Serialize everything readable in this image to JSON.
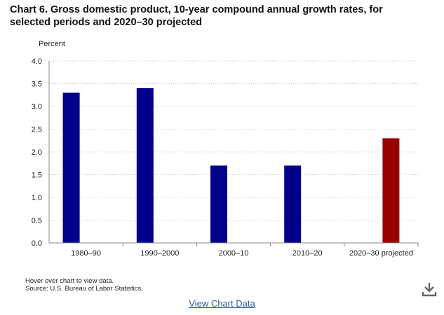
{
  "title": "Chart 6. Gross domestic product, 10-year compound annual growth rates, for selected periods and 2020–30 projected",
  "footnote": {
    "line1": "Hover over chart to view data.",
    "line2": "Source: U.S. Bureau of Labor Statistics."
  },
  "view_data_label": "View Chart Data",
  "download_icon": "download-icon",
  "colors": {
    "historical": "#00008b",
    "projected": "#990000",
    "grid": "#c8c8c8",
    "axis": "#888888"
  },
  "chart_data": {
    "type": "bar",
    "title": "Chart 6. Gross domestic product, 10-year compound annual growth rates, for selected periods and 2020–30 projected",
    "ylabel": "Percent",
    "xlabel": "",
    "categories": [
      "1980–90",
      "1990–2000",
      "2000–10",
      "2010–20",
      "2020–30 projected"
    ],
    "values": [
      3.3,
      3.4,
      1.7,
      1.7,
      2.3
    ],
    "projected": [
      false,
      false,
      false,
      false,
      true
    ],
    "ylim": [
      0,
      4
    ],
    "yticks": [
      "0.0",
      "0.5",
      "1.0",
      "1.5",
      "2.0",
      "2.5",
      "3.0",
      "3.5",
      "4.0"
    ],
    "grid": true,
    "legend": "none"
  }
}
